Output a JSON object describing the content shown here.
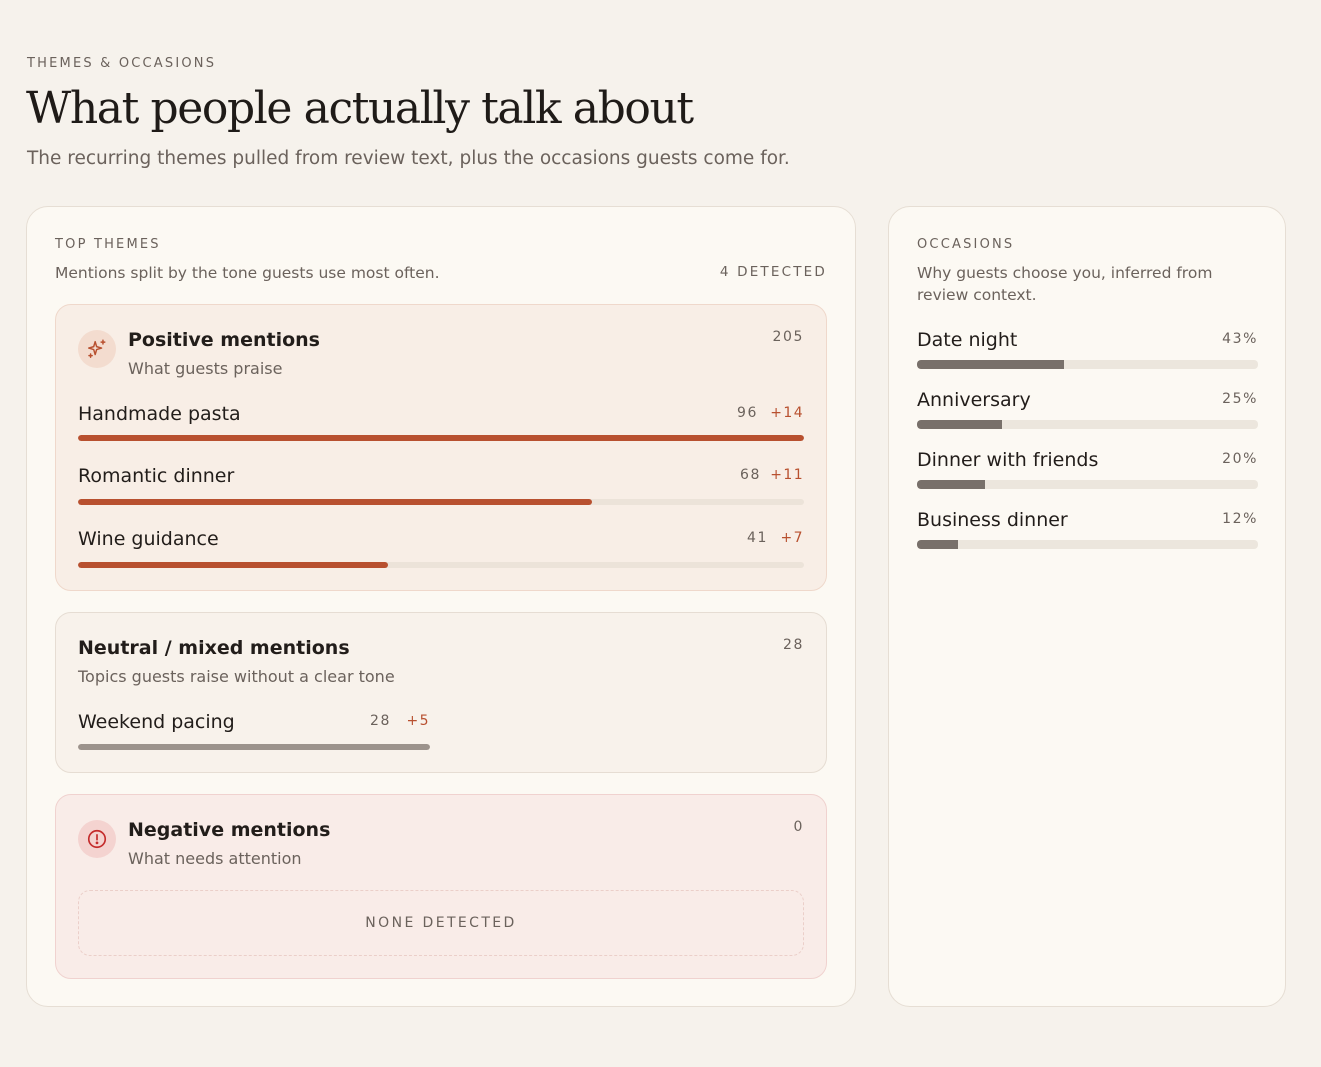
{
  "header": {
    "eyebrow": "THEMES & OCCASIONS",
    "title": "What people actually talk about",
    "subtitle": "The recurring themes pulled from review text, plus the occasions guests come for."
  },
  "themes": {
    "eyebrow": "TOP THEMES",
    "description": "Mentions split by the tone guests use most often.",
    "detected": "4 DETECTED",
    "positive": {
      "icon": "sparkle-icon",
      "title": "Positive mentions",
      "subtitle": "What guests praise",
      "count": "205",
      "color": "#b8502f",
      "items": [
        {
          "label": "Handmade pasta",
          "count": "96",
          "delta": "+14",
          "value": 96
        },
        {
          "label": "Romantic dinner",
          "count": "68",
          "delta": "+11",
          "value": 68
        },
        {
          "label": "Wine guidance",
          "count": "41",
          "delta": "+7",
          "value": 41
        }
      ]
    },
    "neutral": {
      "title": "Neutral / mixed mentions",
      "subtitle": "Topics guests raise without a clear tone",
      "count": "28",
      "items": [
        {
          "label": "Weekend pacing",
          "count": "28",
          "delta": "+5",
          "value": 28
        }
      ]
    },
    "negative": {
      "icon": "alert-circle-icon",
      "title": "Negative mentions",
      "subtitle": "What needs attention",
      "count": "0",
      "empty": "NONE DETECTED"
    }
  },
  "occasions": {
    "eyebrow": "OCCASIONS",
    "description": "Why guests choose you, inferred from review context.",
    "items": [
      {
        "label": "Date night",
        "pct": "43%",
        "value": 43
      },
      {
        "label": "Anniversary",
        "pct": "25%",
        "value": 25
      },
      {
        "label": "Dinner with friends",
        "pct": "20%",
        "value": 20
      },
      {
        "label": "Business dinner",
        "pct": "12%",
        "value": 12
      }
    ]
  }
}
